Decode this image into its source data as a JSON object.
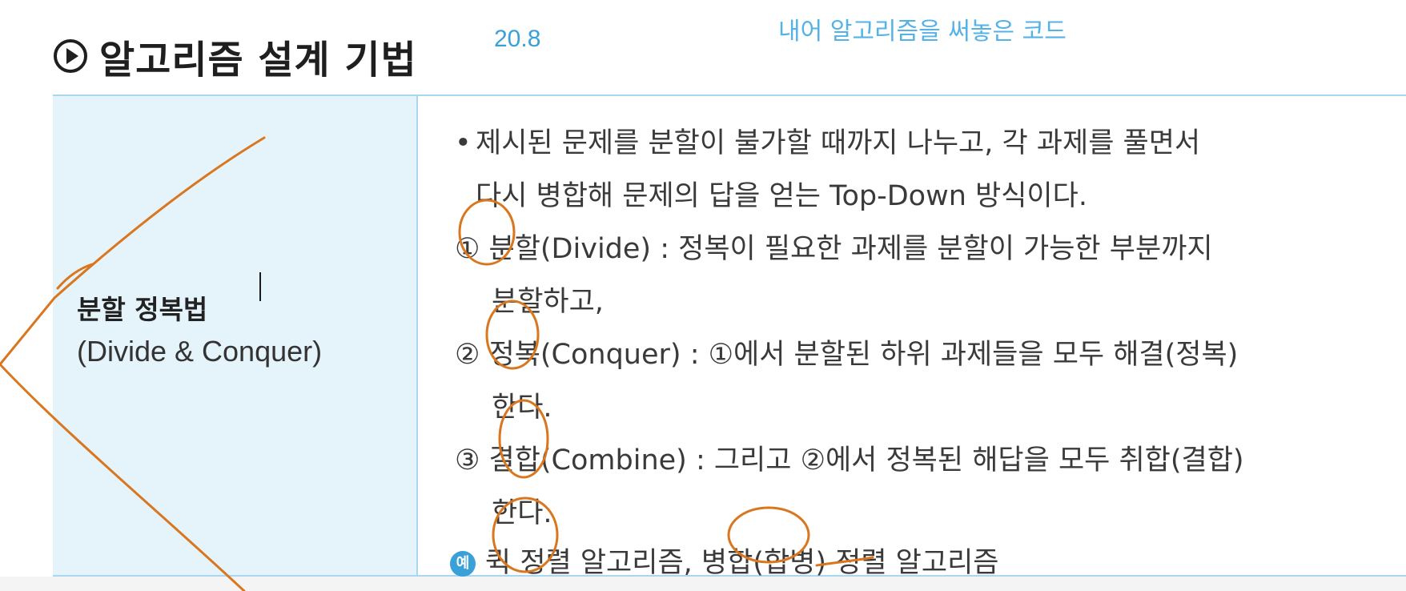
{
  "header": {
    "title": "알고리즘 설계 기법",
    "page_number": "20.8",
    "handwritten_note": "내어 알고리즘을 써놓은 코드"
  },
  "term": {
    "korean": "분할 정복법",
    "english": "(Divide & Conquer)"
  },
  "description": {
    "bullet": "•",
    "intro_line1": "제시된 문제를 분할이 불가할 때까지 나누고, 각 과제를 풀면서",
    "intro_line2": "다시 병합해 문제의 답을 얻는 Top-Down 방식이다.",
    "step1_line1": "① 분할(Divide) : 정복이 필요한 과제를 분할이 가능한 부분까지",
    "step1_line2": "분할하고,",
    "step2_line1": "② 정복(Conquer) : ①에서 분할된 하위 과제들을 모두 해결(정복)",
    "step2_line2": "한다.",
    "step3_line1": "③ 결합(Combine) : 그리고 ②에서 정복된 해답을 모두 취합(결합)",
    "step3_line2": "한다.",
    "example_badge": "예",
    "example_text": "퀵 정렬 알고리즘, 병합(합병) 정렬 알고리즘"
  },
  "colors": {
    "accent_blue": "#3aa0d8",
    "term_background": "#e5f3fb",
    "rule_blue": "#a9d6f0",
    "annotation_orange": "#d9761e"
  },
  "icons": {
    "header_icon": "play-circle-icon"
  }
}
